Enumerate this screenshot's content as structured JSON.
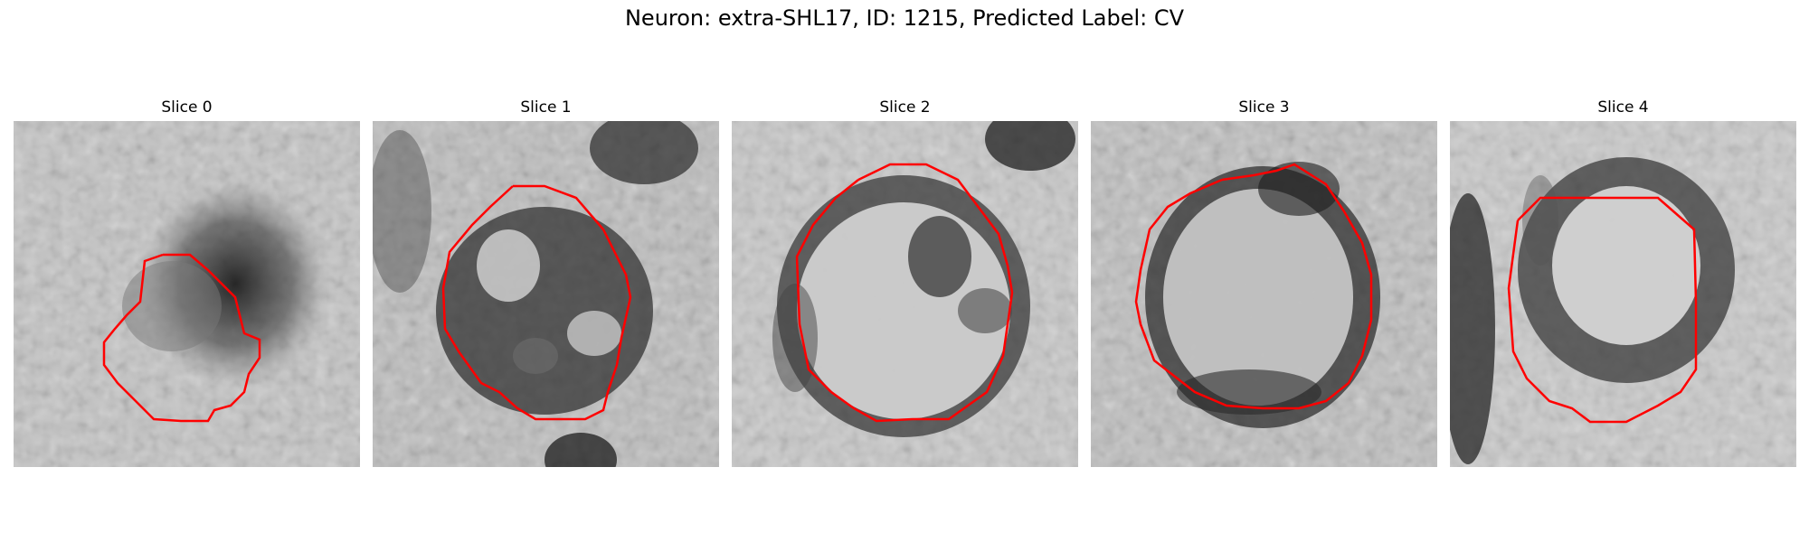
{
  "figure": {
    "title": "Neuron: extra-SHL17, ID: 1215, Predicted Label: CV"
  },
  "colors": {
    "contour": "#ff0000",
    "background": "#ffffff"
  },
  "panels": [
    {
      "title": "Slice 0"
    },
    {
      "title": "Slice 1"
    },
    {
      "title": "Slice 2"
    },
    {
      "title": "Slice 3"
    },
    {
      "title": "Slice 4"
    }
  ]
}
